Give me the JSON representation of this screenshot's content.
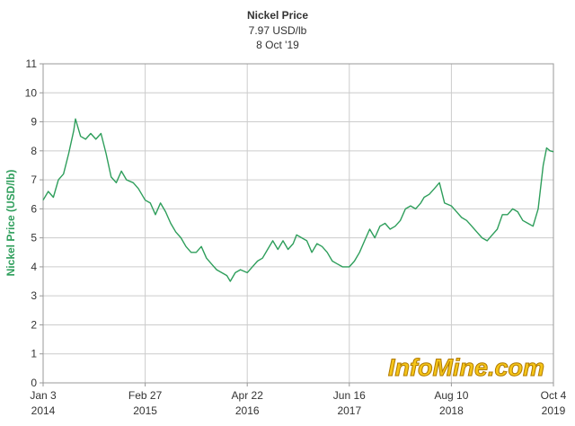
{
  "chart_data": {
    "type": "line",
    "title": "Nickel Price",
    "subtitle_lines": [
      "7.97 USD/lb",
      "8 Oct '19"
    ],
    "xlabel": "",
    "ylabel": "Nickel Price (USD/lb)",
    "ylim": [
      0,
      11
    ],
    "xlim": [
      "2014-01-03",
      "2019-10-04"
    ],
    "y_ticks": [
      "0",
      "1",
      "2",
      "3",
      "4",
      "5",
      "6",
      "7",
      "8",
      "9",
      "10",
      "11"
    ],
    "x_ticks": [
      {
        "date": "2014-01-03",
        "line1": "Jan 3",
        "line2": "2014"
      },
      {
        "date": "2015-02-27",
        "line1": "Feb 27",
        "line2": "2015"
      },
      {
        "date": "2016-04-22",
        "line1": "Apr 22",
        "line2": "2016"
      },
      {
        "date": "2017-06-16",
        "line1": "Jun 16",
        "line2": "2017"
      },
      {
        "date": "2018-08-10",
        "line1": "Aug 10",
        "line2": "2018"
      },
      {
        "date": "2019-10-04",
        "line1": "Oct 4",
        "line2": "2019"
      }
    ],
    "grid": true,
    "line_color": "#2e9e5b",
    "series": [
      {
        "x": [
          "2014-01-03",
          "2014-01-24",
          "2014-02-14",
          "2014-03-07",
          "2014-03-28",
          "2014-04-18",
          "2014-05-09",
          "2014-05-16",
          "2014-06-06",
          "2014-06-27",
          "2014-07-18",
          "2014-08-08",
          "2014-08-29",
          "2014-09-19",
          "2014-10-10",
          "2014-10-31",
          "2014-11-21",
          "2014-12-12",
          "2015-01-09",
          "2015-01-30",
          "2015-02-27",
          "2015-03-20",
          "2015-04-10",
          "2015-05-01",
          "2015-05-22",
          "2015-06-12",
          "2015-07-03",
          "2015-07-24",
          "2015-08-14",
          "2015-09-04",
          "2015-09-25",
          "2015-10-16",
          "2015-11-06",
          "2015-11-27",
          "2015-12-18",
          "2016-01-08",
          "2016-01-29",
          "2016-02-12",
          "2016-03-04",
          "2016-03-25",
          "2016-04-22",
          "2016-05-13",
          "2016-06-03",
          "2016-06-24",
          "2016-07-15",
          "2016-08-05",
          "2016-08-26",
          "2016-09-16",
          "2016-10-07",
          "2016-10-28",
          "2016-11-11",
          "2016-12-02",
          "2016-12-23",
          "2017-01-13",
          "2017-02-03",
          "2017-02-24",
          "2017-03-17",
          "2017-04-07",
          "2017-04-28",
          "2017-05-19",
          "2017-06-16",
          "2017-07-07",
          "2017-07-28",
          "2017-08-18",
          "2017-09-08",
          "2017-09-29",
          "2017-10-20",
          "2017-11-10",
          "2017-12-01",
          "2017-12-22",
          "2018-01-12",
          "2018-02-02",
          "2018-02-23",
          "2018-03-16",
          "2018-04-06",
          "2018-04-20",
          "2018-05-11",
          "2018-06-01",
          "2018-06-22",
          "2018-07-13",
          "2018-08-10",
          "2018-08-31",
          "2018-09-21",
          "2018-10-12",
          "2018-11-02",
          "2018-11-23",
          "2018-12-14",
          "2019-01-04",
          "2019-01-25",
          "2019-02-15",
          "2019-03-08",
          "2019-03-29",
          "2019-04-19",
          "2019-05-10",
          "2019-05-31",
          "2019-06-21",
          "2019-07-12",
          "2019-08-02",
          "2019-08-23",
          "2019-09-06",
          "2019-09-20",
          "2019-10-04"
        ],
        "y": [
          6.3,
          6.6,
          6.4,
          7.0,
          7.2,
          7.9,
          8.7,
          9.1,
          8.5,
          8.4,
          8.6,
          8.4,
          8.6,
          7.9,
          7.1,
          6.9,
          7.3,
          7.0,
          6.9,
          6.7,
          6.3,
          6.2,
          5.8,
          6.2,
          5.9,
          5.5,
          5.2,
          5.0,
          4.7,
          4.5,
          4.5,
          4.7,
          4.3,
          4.1,
          3.9,
          3.8,
          3.7,
          3.5,
          3.8,
          3.9,
          3.8,
          4.0,
          4.2,
          4.3,
          4.6,
          4.9,
          4.6,
          4.9,
          4.6,
          4.8,
          5.1,
          5.0,
          4.9,
          4.5,
          4.8,
          4.7,
          4.5,
          4.2,
          4.1,
          4.0,
          4.0,
          4.2,
          4.5,
          4.9,
          5.3,
          5.0,
          5.4,
          5.5,
          5.3,
          5.4,
          5.6,
          6.0,
          6.1,
          6.0,
          6.2,
          6.4,
          6.5,
          6.7,
          6.9,
          6.2,
          6.1,
          5.9,
          5.7,
          5.6,
          5.4,
          5.2,
          5.0,
          4.9,
          5.1,
          5.3,
          5.8,
          5.8,
          6.0,
          5.9,
          5.6,
          5.5,
          5.4,
          6.0,
          7.5,
          8.1,
          8.0,
          7.97
        ]
      }
    ]
  },
  "watermark": "InfoMine.com"
}
